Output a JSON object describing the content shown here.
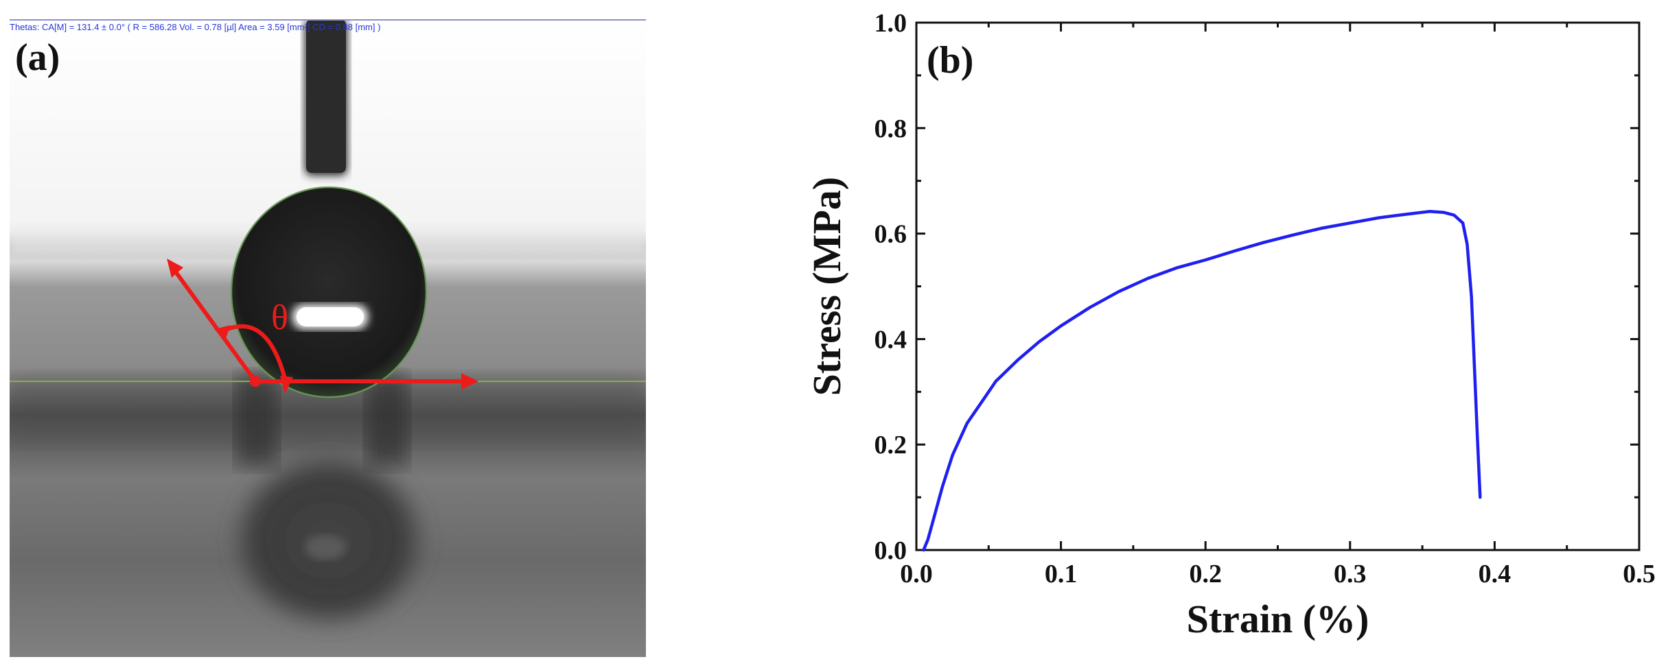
{
  "panel_a": {
    "label": "(a)",
    "header_text": "Thetas: CA[M] = 131.4 ± 0.0° ( R = 586.28  Vol. = 0.78 [µl]  Area = 3.59 [mm²] CD = 0.88 [mm] )",
    "angle_symbol": "θ",
    "colors": {
      "arrow": "#ee1b1b",
      "header_text": "#2438d8",
      "baseline": "#8fae4a"
    }
  },
  "panel_b": {
    "label": "(b)"
  },
  "chart_data": {
    "type": "line",
    "title": "",
    "xlabel": "Strain (%)",
    "ylabel": "Stress (MPa)",
    "xlim": [
      0.0,
      0.5
    ],
    "ylim": [
      0.0,
      1.0
    ],
    "xticks": [
      "0.0",
      "0.1",
      "0.2",
      "0.3",
      "0.4",
      "0.5"
    ],
    "yticks": [
      "0.0",
      "0.2",
      "0.4",
      "0.6",
      "0.8",
      "1.0"
    ],
    "grid": false,
    "series": [
      {
        "color": "#1f1ff0",
        "x": [
          0.005,
          0.008,
          0.012,
          0.018,
          0.025,
          0.035,
          0.045,
          0.055,
          0.07,
          0.085,
          0.1,
          0.12,
          0.14,
          0.16,
          0.18,
          0.2,
          0.22,
          0.24,
          0.26,
          0.28,
          0.3,
          0.32,
          0.34,
          0.355,
          0.365,
          0.372,
          0.378,
          0.381,
          0.384,
          0.386,
          0.388,
          0.39
        ],
        "y": [
          0.0,
          0.02,
          0.06,
          0.12,
          0.18,
          0.24,
          0.28,
          0.32,
          0.36,
          0.395,
          0.425,
          0.46,
          0.49,
          0.515,
          0.535,
          0.55,
          0.567,
          0.583,
          0.597,
          0.61,
          0.62,
          0.63,
          0.637,
          0.642,
          0.64,
          0.635,
          0.62,
          0.58,
          0.48,
          0.35,
          0.22,
          0.1
        ]
      }
    ]
  }
}
